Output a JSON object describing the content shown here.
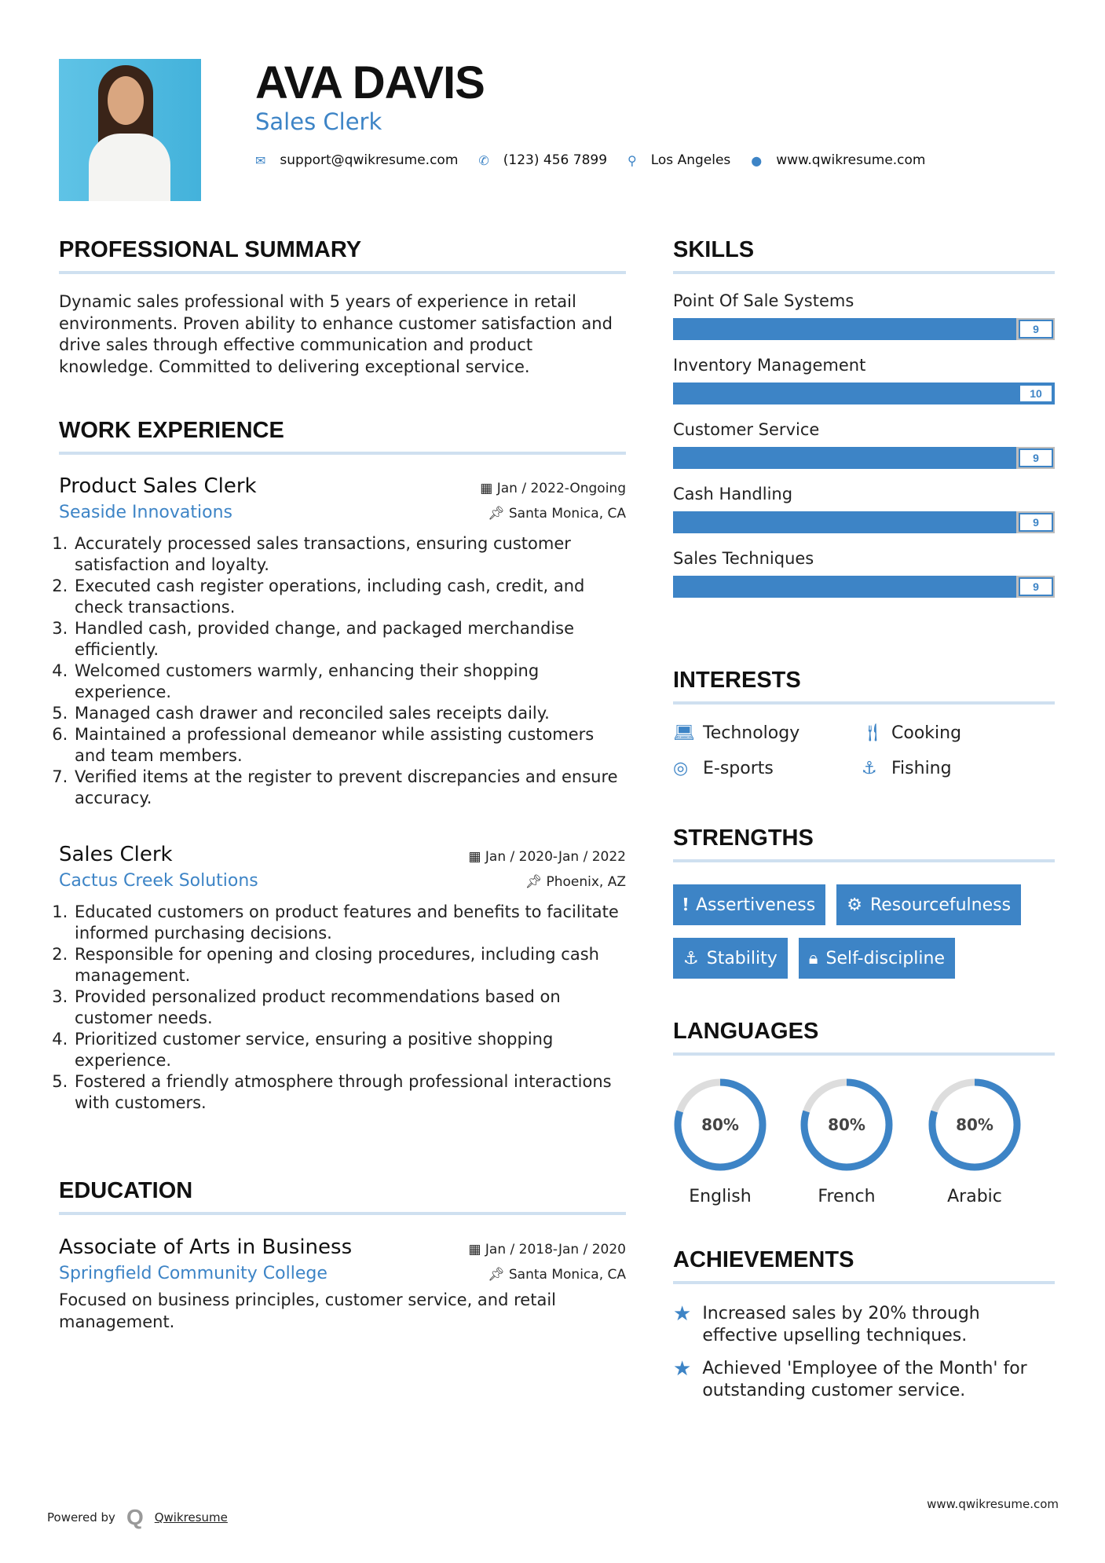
{
  "header": {
    "name": "AVA DAVIS",
    "title": "Sales Clerk",
    "email": "support@qwikresume.com",
    "phone": "(123) 456 7899",
    "location": "Los Angeles",
    "website": "www.qwikresume.com"
  },
  "summary": {
    "heading": "PROFESSIONAL SUMMARY",
    "text": "Dynamic sales professional with 5 years of experience in retail environments. Proven ability to enhance customer satisfaction and drive sales through effective communication and product knowledge. Committed to delivering exceptional service."
  },
  "experience": {
    "heading": "WORK EXPERIENCE",
    "jobs": [
      {
        "title": "Product Sales Clerk",
        "dates": "Jan / 2022-Ongoing",
        "company": "Seaside Innovations",
        "location": "Santa Monica, CA",
        "bullets": [
          "Accurately processed sales transactions, ensuring customer satisfaction and loyalty.",
          "Executed cash register operations, including cash, credit, and check transactions.",
          "Handled cash, provided change, and packaged merchandise efficiently.",
          "Welcomed customers warmly, enhancing their shopping experience.",
          "Managed cash drawer and reconciled sales receipts daily.",
          "Maintained a professional demeanor while assisting customers and team members.",
          "Verified items at the register to prevent discrepancies and ensure accuracy."
        ]
      },
      {
        "title": "Sales Clerk",
        "dates": "Jan / 2020-Jan / 2022",
        "company": "Cactus Creek Solutions",
        "location": "Phoenix, AZ",
        "bullets": [
          "Educated customers on product features and benefits to facilitate informed purchasing decisions.",
          "Responsible for opening and closing procedures, including cash management.",
          "Provided personalized product recommendations based on customer needs.",
          "Prioritized customer service, ensuring a positive shopping experience.",
          "Fostered a friendly atmosphere through professional interactions with customers."
        ]
      }
    ]
  },
  "education": {
    "heading": "EDUCATION",
    "degree": "Associate of Arts in Business",
    "dates": "Jan / 2018-Jan / 2020",
    "school": "Springfield Community College",
    "location": "Santa Monica, CA",
    "description": "Focused on business principles, customer service, and retail management."
  },
  "skills": {
    "heading": "SKILLS",
    "items": [
      {
        "name": "Point Of Sale Systems",
        "level": 9
      },
      {
        "name": "Inventory Management",
        "level": 10
      },
      {
        "name": "Customer Service",
        "level": 9
      },
      {
        "name": "Cash Handling",
        "level": 9
      },
      {
        "name": "Sales Techniques",
        "level": 9
      }
    ],
    "max": 10
  },
  "interests": {
    "heading": "INTERESTS",
    "items": [
      {
        "label": "Technology",
        "icon": "laptop-icon"
      },
      {
        "label": "Cooking",
        "icon": "utensils-icon"
      },
      {
        "label": "E-sports",
        "icon": "life-ring-icon"
      },
      {
        "label": "Fishing",
        "icon": "anchor-icon"
      }
    ]
  },
  "strengths": {
    "heading": "STRENGTHS",
    "items": [
      {
        "label": "Assertiveness",
        "icon": "exclamation-circle-icon"
      },
      {
        "label": "Resourcefulness",
        "icon": "gears-icon"
      },
      {
        "label": "Stability",
        "icon": "anchor-icon"
      },
      {
        "label": "Self-discipline",
        "icon": "lock-icon"
      }
    ]
  },
  "languages": {
    "heading": "LANGUAGES",
    "items": [
      {
        "name": "English",
        "percent": "80%",
        "value": 80
      },
      {
        "name": "French",
        "percent": "80%",
        "value": 80
      },
      {
        "name": "Arabic",
        "percent": "80%",
        "value": 80
      }
    ]
  },
  "achievements": {
    "heading": "ACHIEVEMENTS",
    "items": [
      "Increased sales by 20% through effective upselling techniques.",
      "Achieved 'Employee of the Month' for outstanding customer service."
    ]
  },
  "footer": {
    "powered_by": "Powered by",
    "brand": "Qwikresume",
    "website": "www.qwikresume.com"
  },
  "colors": {
    "accent": "#3d84c6",
    "bar_empty": "#bdbdbd",
    "rule": "#cfe0f0"
  }
}
